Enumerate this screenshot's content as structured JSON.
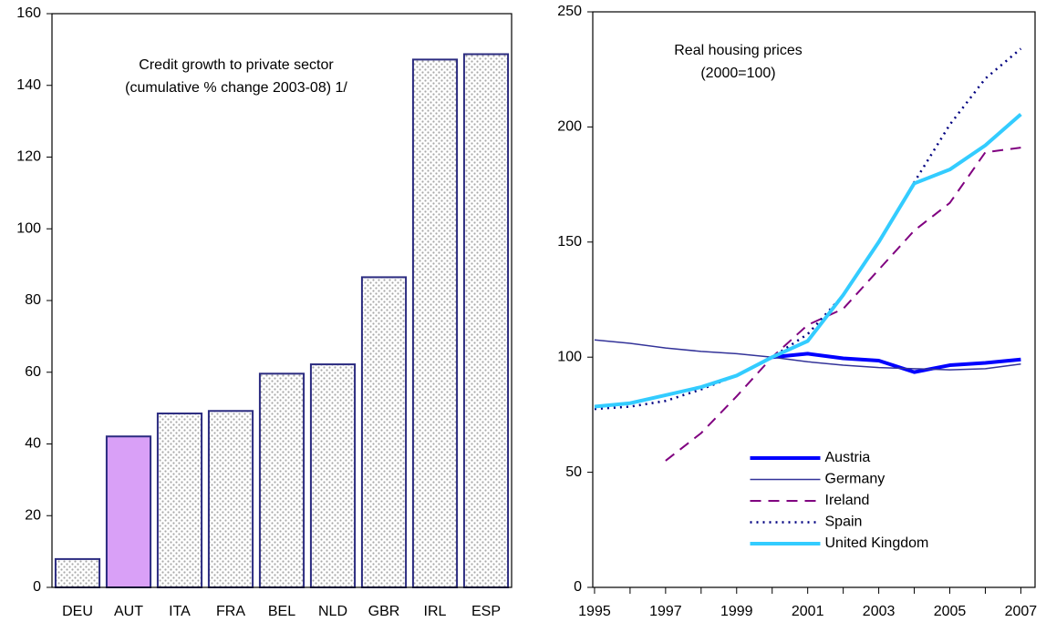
{
  "chart_data": [
    {
      "type": "bar",
      "title": "Credit growth to private sector",
      "subtitle": "(cumulative % change 2003-08) 1/",
      "categories": [
        "DEU",
        "AUT",
        "ITA",
        "FRA",
        "BEL",
        "NLD",
        "GBR",
        "IRL",
        "ESP"
      ],
      "values": [
        7.9,
        42.1,
        48.5,
        49.2,
        59.6,
        62.2,
        86.5,
        147.2,
        148.7
      ],
      "colors": [
        "#a8a8a8",
        "#d9a0f7",
        "#a8a8a8",
        "#a8a8a8",
        "#a8a8a8",
        "#a8a8a8",
        "#a8a8a8",
        "#a8a8a8",
        "#a8a8a8"
      ],
      "fill_styles": [
        "dots",
        "solid",
        "dots",
        "dots",
        "dots",
        "dots",
        "dots",
        "dots",
        "dots"
      ],
      "edgecolor": "#2b2b80",
      "ylim": [
        0,
        160
      ],
      "yticks": [
        0,
        20,
        40,
        60,
        80,
        100,
        120,
        140,
        160
      ]
    },
    {
      "type": "line",
      "title": "Real housing prices",
      "subtitle": "(2000=100)",
      "x": [
        1995,
        1996,
        1997,
        1998,
        1999,
        2000,
        2001,
        2002,
        2003,
        2004,
        2005,
        2006,
        2007
      ],
      "series": [
        {
          "name": "Austria",
          "color": "#0000ff",
          "width": 4,
          "dash": "solid",
          "values": [
            null,
            null,
            null,
            null,
            null,
            100,
            101.5,
            99.5,
            98.5,
            93.5,
            96.5,
            97.5,
            99
          ]
        },
        {
          "name": "Germany",
          "color": "#333399",
          "width": 1.5,
          "dash": "solid",
          "values": [
            107.5,
            106,
            104,
            102.5,
            101.5,
            100,
            98,
            96.5,
            95.5,
            95,
            94.5,
            95,
            97
          ]
        },
        {
          "name": "Ireland",
          "color": "#800080",
          "width": 2,
          "dash": "dashed",
          "values": [
            null,
            null,
            55,
            67,
            83,
            100,
            114,
            121,
            138,
            155,
            167,
            189,
            191
          ]
        },
        {
          "name": "Spain",
          "color": "#000080",
          "width": 2.5,
          "dash": "dotted",
          "values": [
            77.5,
            78.5,
            81,
            86,
            92,
            100,
            110,
            127,
            150,
            176,
            201,
            221,
            234
          ]
        },
        {
          "name": "United Kingdom",
          "color": "#33ccff",
          "width": 4,
          "dash": "solid",
          "values": [
            78.5,
            80,
            83.5,
            87,
            92,
            100,
            107,
            127,
            150,
            175.5,
            181.5,
            192,
            205.5
          ]
        }
      ],
      "xlim": [
        1994.95,
        2007.4
      ],
      "xticks": [
        1995,
        1997,
        1999,
        2001,
        2003,
        2005,
        2007
      ],
      "xminorticks": [
        1996,
        1998,
        2000,
        2002,
        2004,
        2006
      ],
      "ylim": [
        0,
        250
      ],
      "yticks": [
        0,
        50,
        100,
        150,
        200,
        250
      ],
      "legend": "lower center"
    }
  ]
}
